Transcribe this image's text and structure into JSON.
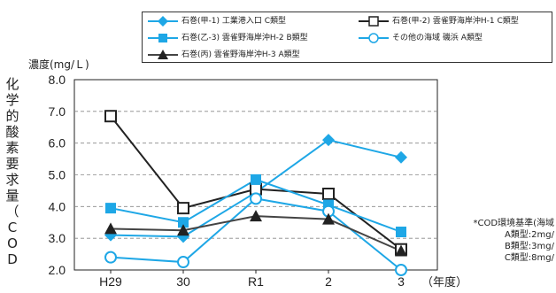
{
  "legend": {
    "items": [
      {
        "label": "石巻(甲-1)  工業港入口 C類型",
        "color": "#1ea7e6",
        "marker": "diamond",
        "filled": true
      },
      {
        "label": "石巻(甲-2)  雲雀野海岸沖H-1 C類型",
        "color": "#222222",
        "marker": "square",
        "filled": false
      },
      {
        "label": "石巻(乙-3)  雲雀野海岸沖H-2 B類型",
        "color": "#1ea7e6",
        "marker": "square",
        "filled": true
      },
      {
        "label": "その他の海域   磯浜 A類型",
        "color": "#1ea7e6",
        "marker": "circle",
        "filled": false
      },
      {
        "label": "石巻(丙)  雲雀野海岸沖H-3 A類型",
        "color": "#333333",
        "marker": "triangle",
        "filled": true
      }
    ]
  },
  "y_title_chars": [
    "化",
    "学",
    "的",
    "酸",
    "素",
    "要",
    "求",
    "量",
    "（",
    "C",
    "O",
    "D"
  ],
  "unit_label": "濃度(mg/Ｌ)",
  "note": {
    "lines": [
      "*COD環境基準(海域",
      "A類型:2mg/",
      "B類型:3mg/",
      "C類型:8mg/"
    ]
  },
  "chart_data": {
    "type": "line",
    "categories": [
      "H29",
      "30",
      "R1",
      "2",
      "3"
    ],
    "xlabel": "（年度）",
    "ylabel": "化学的酸素要求量（COD",
    "ylim": [
      2.0,
      8.0
    ],
    "yticks": [
      "2.0",
      "3.0",
      "4.0",
      "5.0",
      "6.0",
      "7.0",
      "8.0"
    ],
    "grid": "horizontal dashed",
    "legend_position": "top",
    "series": [
      {
        "name": "石巻(甲-1)  工業港入口 C類型",
        "color": "#1ea7e6",
        "marker": "diamond",
        "filled": true,
        "values": [
          3.1,
          3.05,
          4.45,
          6.1,
          5.55
        ]
      },
      {
        "name": "石巻(甲-2)  雲雀野海岸沖H-1 C類型",
        "color": "#222222",
        "marker": "square",
        "filled": false,
        "values": [
          6.85,
          3.95,
          4.55,
          4.4,
          2.65
        ]
      },
      {
        "name": "石巻(乙-3)  雲雀野海岸沖H-2 B類型",
        "color": "#1ea7e6",
        "marker": "square",
        "filled": true,
        "values": [
          3.95,
          3.5,
          4.85,
          4.05,
          3.2
        ]
      },
      {
        "name": "その他の海域   磯浜 A類型",
        "color": "#1ea7e6",
        "marker": "circle",
        "filled": false,
        "values": [
          2.4,
          2.25,
          4.25,
          3.85,
          2.0
        ]
      },
      {
        "name": "石巻(丙)  雲雀野海岸沖H-3 A類型",
        "color": "#444444",
        "marker": "triangle",
        "filled": true,
        "values": [
          3.3,
          3.25,
          3.7,
          3.6,
          2.6
        ]
      }
    ]
  }
}
